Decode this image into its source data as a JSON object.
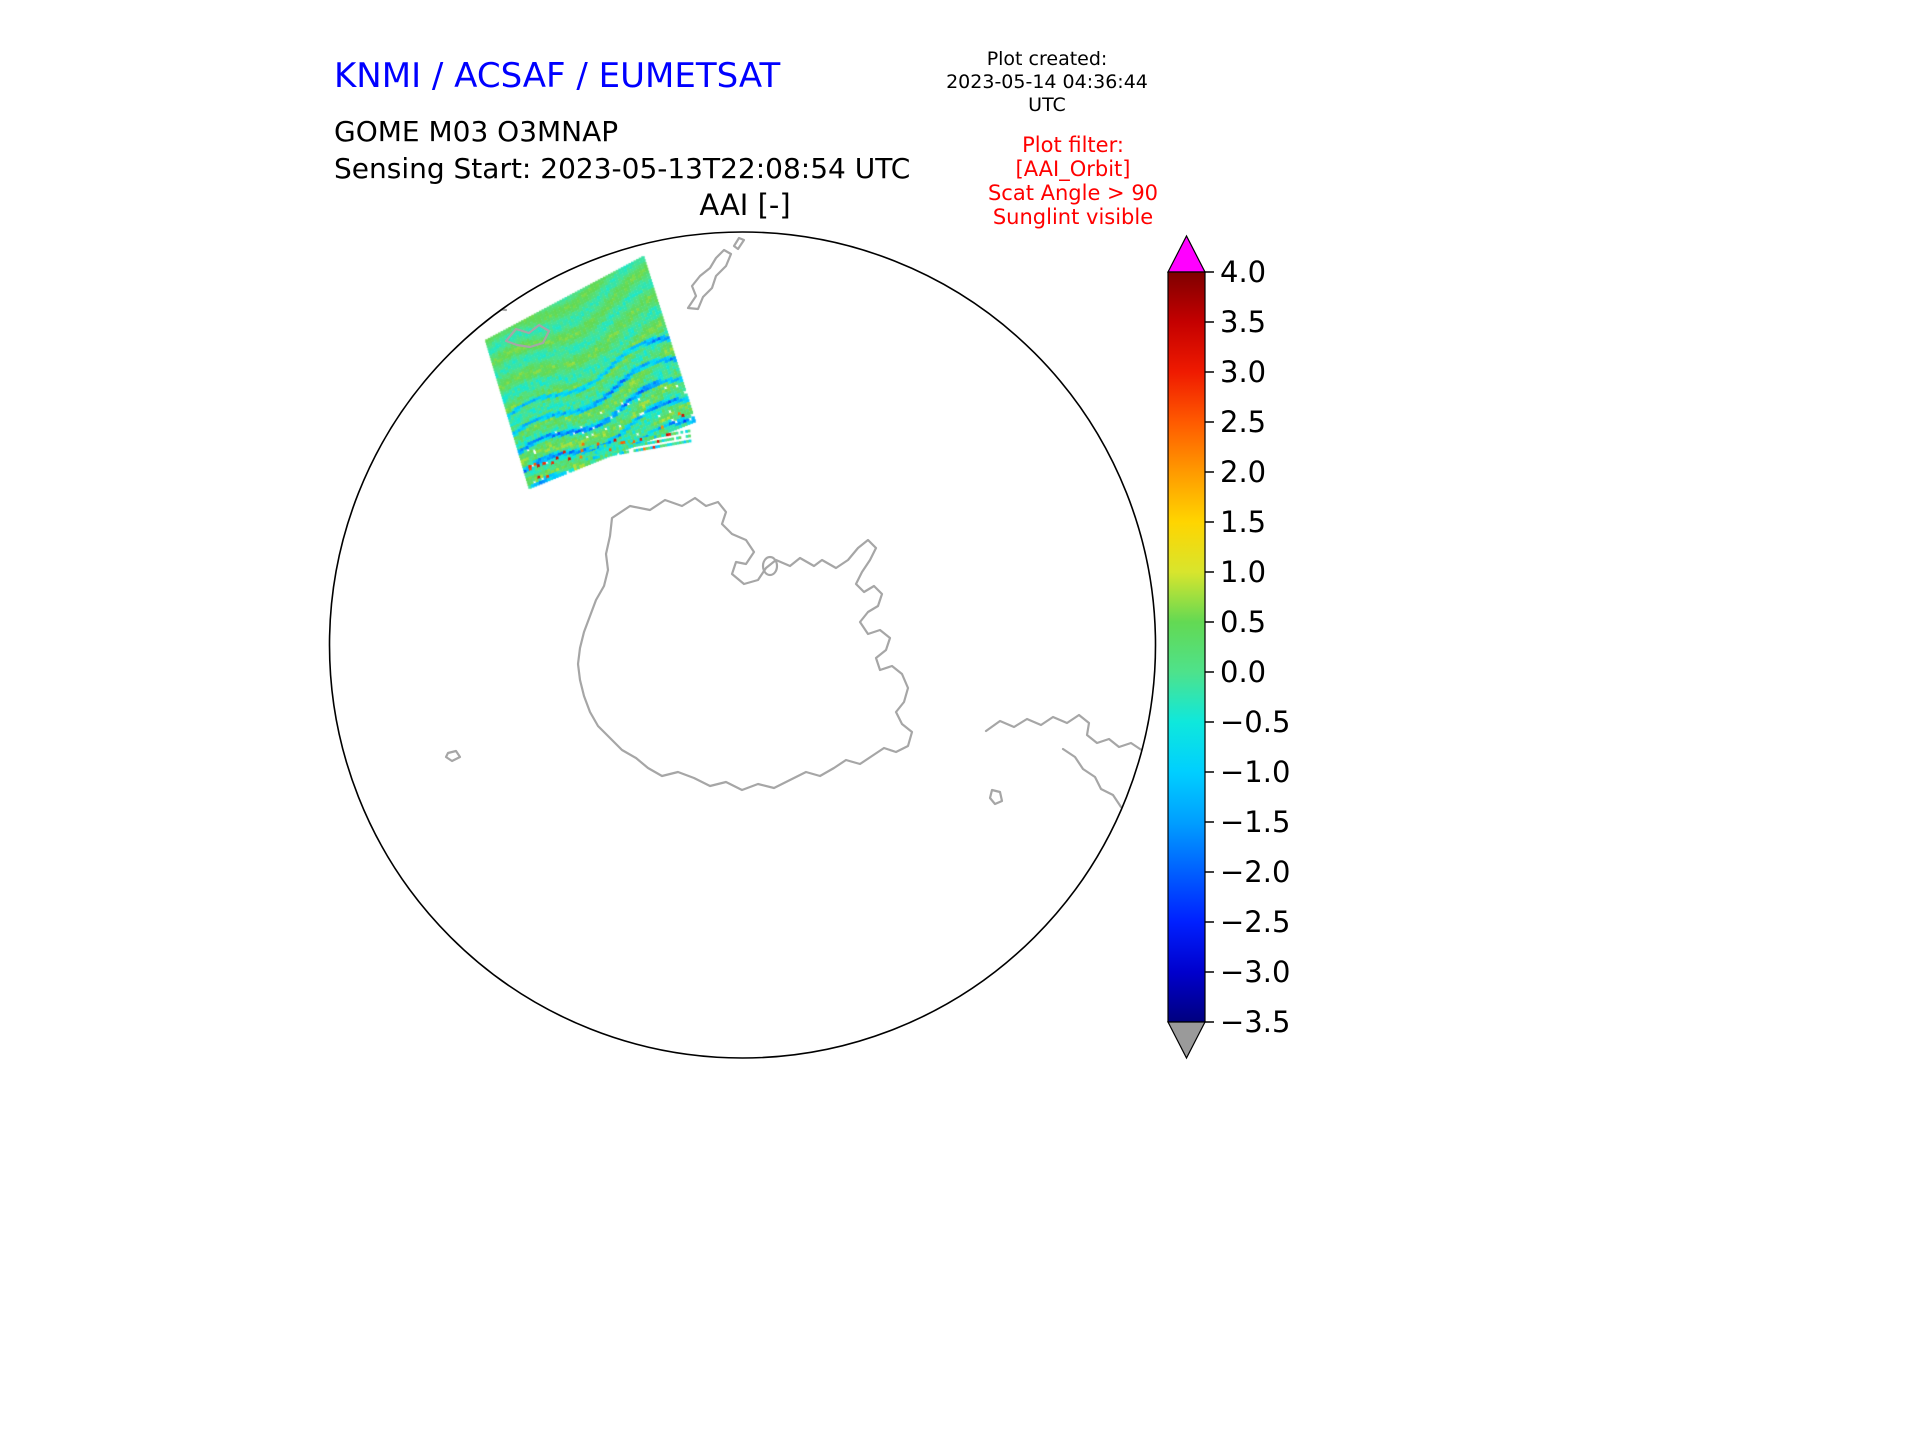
{
  "header": {
    "org_title": "KNMI / ACSAF / EUMETSAT",
    "org_color": "#0000ff",
    "plot_created_label": "Plot created:",
    "plot_created_value": "2023-05-14 04:36:44 UTC",
    "product": "GOME M03 O3MNAP",
    "sensing_start": "Sensing Start: 2023-05-13T22:08:54 UTC",
    "plot_title": "AAI [-]"
  },
  "plot_filter": {
    "color": "#ff0000",
    "lines": [
      "Plot filter:",
      "[AAI_Orbit]",
      "Scat Angle > 90",
      "Sunglint visible"
    ]
  },
  "chart_data": {
    "type": "heatmap",
    "title": "AAI [-]",
    "projection": "south polar stereographic",
    "coastline_color": "#a6a6a6",
    "colorbar": {
      "min": -3.5,
      "max": 4.0,
      "tick_step": 0.5,
      "ticks": [
        4.0,
        3.5,
        3.0,
        2.5,
        2.0,
        1.5,
        1.0,
        0.5,
        0.0,
        -0.5,
        -1.0,
        -1.5,
        -2.0,
        -2.5,
        -3.0,
        -3.5
      ],
      "tick_labels": [
        "4.0",
        "3.5",
        "3.0",
        "2.5",
        "2.0",
        "1.5",
        "1.0",
        "0.5",
        "0.0",
        "−0.5",
        "−1.0",
        "−1.5",
        "−2.0",
        "−2.5",
        "−3.0",
        "−3.5"
      ],
      "over_color": "#ff00ff",
      "under_color": "#9a9a9a",
      "stops": [
        {
          "v": -3.5,
          "c": "#00007f"
        },
        {
          "v": -3.0,
          "c": "#0000cd"
        },
        {
          "v": -2.5,
          "c": "#0020ff"
        },
        {
          "v": -2.0,
          "c": "#005fff"
        },
        {
          "v": -1.5,
          "c": "#009fff"
        },
        {
          "v": -1.0,
          "c": "#00cfff"
        },
        {
          "v": -0.5,
          "c": "#0fe8dc"
        },
        {
          "v": 0.0,
          "c": "#4ee28b"
        },
        {
          "v": 0.5,
          "c": "#63d953"
        },
        {
          "v": 1.0,
          "c": "#d8e52d"
        },
        {
          "v": 1.5,
          "c": "#ffd500"
        },
        {
          "v": 2.0,
          "c": "#ff9a00"
        },
        {
          "v": 2.5,
          "c": "#ff5a00"
        },
        {
          "v": 3.0,
          "c": "#ef1a00"
        },
        {
          "v": 3.5,
          "c": "#c40000"
        },
        {
          "v": 4.0,
          "c": "#7f0000"
        }
      ]
    },
    "swath": {
      "region_hint": "upper-left sector of polar disc",
      "typical_value_range": [
        -2.0,
        1.5
      ],
      "corners": [
        [
          487,
          341
        ],
        [
          643,
          258
        ],
        [
          694,
          421
        ],
        [
          530,
          487
        ]
      ],
      "sliver_corners": [
        [
          586,
          449
        ],
        [
          689,
          431
        ],
        [
          690,
          441
        ],
        [
          587,
          459
        ]
      ]
    }
  }
}
